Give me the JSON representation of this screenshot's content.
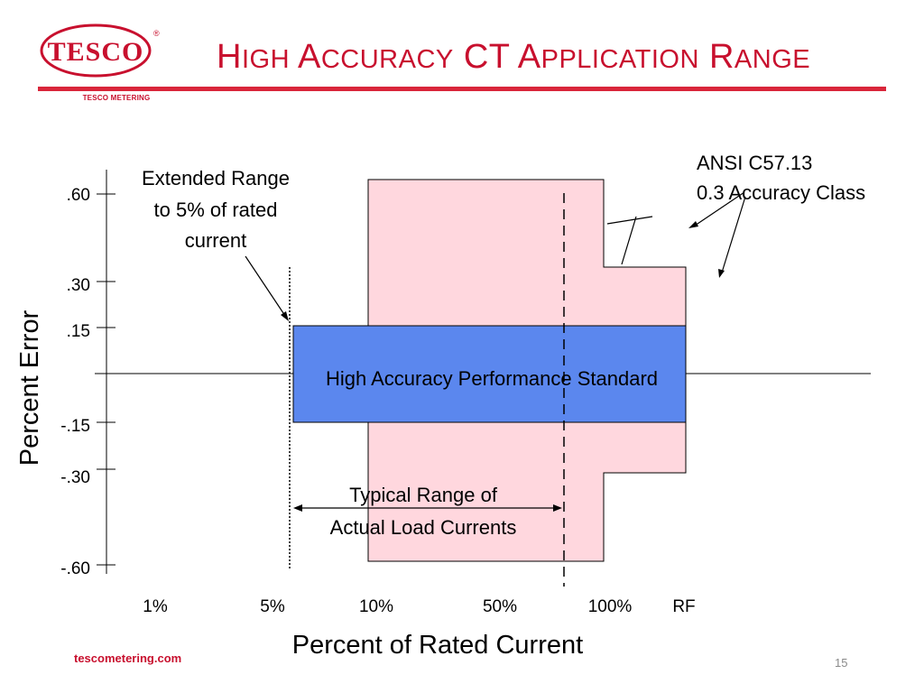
{
  "header": {
    "logo_text": "TESCO",
    "logo_registered": "®",
    "logo_caption": "TESCO METERING",
    "title_words": [
      {
        "cap": "H",
        "rest": "IGH"
      },
      {
        "cap": "A",
        "rest": "CCURACY"
      },
      {
        "cap": "CT",
        "rest": ""
      },
      {
        "cap": "A",
        "rest": "PPLICATION"
      },
      {
        "cap": "R",
        "rest": "ANGE"
      }
    ]
  },
  "colors": {
    "brand_red": "#c8102e",
    "pink_zone": "#ffd7de",
    "blue_band": "#5b87ee"
  },
  "chart_data": {
    "type": "diagram",
    "title": "High Accuracy CT Application Range",
    "xlabel": "Percent of Rated Current",
    "ylabel": "Percent Error",
    "x_ticks": [
      "1%",
      "5%",
      "10%",
      "50%",
      "100%",
      "RF"
    ],
    "y_ticks": [
      ".60",
      ".30",
      ".15",
      "-.15",
      "-.30",
      "-.60"
    ],
    "regions": {
      "ansi_class_03": {
        "name": "ANSI C57.13 0.3 Accuracy Class",
        "from_10pct": 0.6,
        "from_100pct_to_rf": 0.3
      },
      "high_accuracy_band": {
        "name": "High Accuracy Performance Standard",
        "from": "5%",
        "to": "RF",
        "error": 0.15
      }
    },
    "annotations": {
      "extended_range": [
        "Extended Range",
        "to 5% of rated",
        "current"
      ],
      "ansi": [
        "ANSI C57.13",
        "0.3 Accuracy Class"
      ],
      "band_label": "High Accuracy Performance Standard",
      "typical_range": [
        "Typical Range of",
        "Actual Load Currents"
      ]
    }
  },
  "footer": {
    "website": "tescometering.com",
    "page_number": "15"
  }
}
